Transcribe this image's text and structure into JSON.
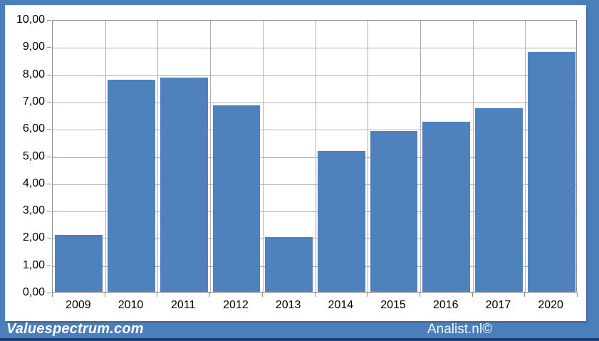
{
  "footer": {
    "brand_left": "Valuespectrum.com",
    "brand_right": "Analist.nl©"
  },
  "colors": {
    "frame_blue": "#4b7fbc",
    "bar_blue": "#4f81bd",
    "bottom_strip_navy": "#1e3d6b",
    "gridline_gray": "#b0b0b0",
    "plot_border_gray": "#8c8c8c",
    "label_text": "#000000",
    "footer_text": "#ffffff"
  },
  "chart_data": {
    "type": "bar",
    "categories": [
      "2009",
      "2010",
      "2011",
      "2012",
      "2013",
      "2014",
      "2015",
      "2016",
      "2017",
      "2020"
    ],
    "values": [
      2.08,
      7.79,
      7.86,
      6.83,
      2.02,
      5.17,
      5.89,
      6.25,
      6.74,
      8.79
    ],
    "title": "",
    "xlabel": "",
    "ylabel": "",
    "ylim": [
      0,
      10
    ],
    "ytick_step": 1,
    "ytick_labels": [
      "0,00",
      "1,00",
      "2,00",
      "3,00",
      "4,00",
      "5,00",
      "6,00",
      "7,00",
      "8,00",
      "9,00",
      "10,00"
    ],
    "grid": "horizontal and vertical major gridlines",
    "legend_position": "none",
    "bar_color": "#4f81bd"
  }
}
